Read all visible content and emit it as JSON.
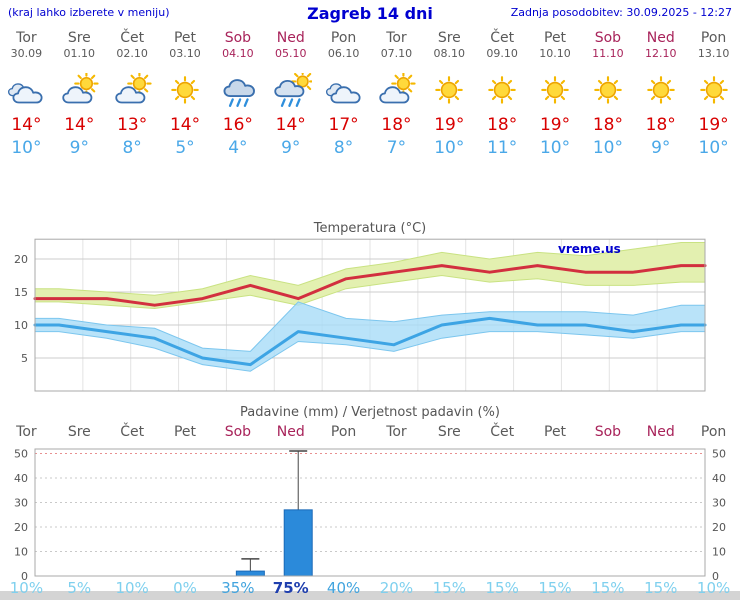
{
  "header": {
    "left_note": "(kraj lahko izberete v meniju)",
    "title": "Zagreb 14 dni",
    "updated": "Zadnja posodobitev: 30.09.2025 - 12:27"
  },
  "colors": {
    "header_text": "#0000d0",
    "weekday_text": "#5a5a5a",
    "weekend_text": "#a8235a",
    "max_temp": "#d80000",
    "min_temp": "#4aa8e8",
    "bar_blue": "#2b8ada",
    "prob_low": "#7fd0ee",
    "prob_mid": "#42a4de",
    "prob_high": "#1f3fae"
  },
  "days": [
    {
      "name": "Tor",
      "date": "30.09",
      "weekend": false,
      "icon": "cloud",
      "tmax": "14°",
      "tmin": "10°",
      "precip_prob": "10%",
      "prob_level": "low"
    },
    {
      "name": "Sre",
      "date": "01.10",
      "weekend": false,
      "icon": "cloud-sun",
      "tmax": "14°",
      "tmin": "9°",
      "precip_prob": "5%",
      "prob_level": "low"
    },
    {
      "name": "Čet",
      "date": "02.10",
      "weekend": false,
      "icon": "cloud-sun",
      "tmax": "13°",
      "tmin": "8°",
      "precip_prob": "10%",
      "prob_level": "low"
    },
    {
      "name": "Pet",
      "date": "03.10",
      "weekend": false,
      "icon": "sun",
      "tmax": "14°",
      "tmin": "5°",
      "precip_prob": "0%",
      "prob_level": "low"
    },
    {
      "name": "Sob",
      "date": "04.10",
      "weekend": true,
      "icon": "rain-cloud",
      "tmax": "16°",
      "tmin": "4°",
      "precip_prob": "35%",
      "prob_level": "mid"
    },
    {
      "name": "Ned",
      "date": "05.10",
      "weekend": true,
      "icon": "rain-sun",
      "tmax": "14°",
      "tmin": "9°",
      "precip_prob": "75%",
      "prob_level": "high"
    },
    {
      "name": "Pon",
      "date": "06.10",
      "weekend": false,
      "icon": "cloud",
      "tmax": "17°",
      "tmin": "8°",
      "precip_prob": "40%",
      "prob_level": "mid"
    },
    {
      "name": "Tor",
      "date": "07.10",
      "weekend": false,
      "icon": "cloud-sun",
      "tmax": "18°",
      "tmin": "7°",
      "precip_prob": "20%",
      "prob_level": "low"
    },
    {
      "name": "Sre",
      "date": "08.10",
      "weekend": false,
      "icon": "sun",
      "tmax": "19°",
      "tmin": "10°",
      "precip_prob": "15%",
      "prob_level": "low"
    },
    {
      "name": "Čet",
      "date": "09.10",
      "weekend": false,
      "icon": "sun",
      "tmax": "18°",
      "tmin": "11°",
      "precip_prob": "15%",
      "prob_level": "low"
    },
    {
      "name": "Pet",
      "date": "10.10",
      "weekend": false,
      "icon": "sun",
      "tmax": "19°",
      "tmin": "10°",
      "precip_prob": "15%",
      "prob_level": "low"
    },
    {
      "name": "Sob",
      "date": "11.10",
      "weekend": true,
      "icon": "sun",
      "tmax": "18°",
      "tmin": "10°",
      "precip_prob": "15%",
      "prob_level": "low"
    },
    {
      "name": "Ned",
      "date": "12.10",
      "weekend": true,
      "icon": "sun",
      "tmax": "18°",
      "tmin": "9°",
      "precip_prob": "15%",
      "prob_level": "low"
    },
    {
      "name": "Pon",
      "date": "13.10",
      "weekend": false,
      "icon": "sun",
      "tmax": "19°",
      "tmin": "10°",
      "precip_prob": "10%",
      "prob_level": "low"
    }
  ],
  "chart_data": [
    {
      "type": "line",
      "title": "Temperatura (°C)",
      "watermark": "vreme.us",
      "categories": [
        "Tor",
        "Sre",
        "Čet",
        "Pet",
        "Sob",
        "Ned",
        "Pon",
        "Tor",
        "Sre",
        "Čet",
        "Pet",
        "Sob",
        "Ned",
        "Pon"
      ],
      "ylim": [
        0,
        23
      ],
      "yticks": [
        5,
        10,
        15,
        20
      ],
      "grid": true,
      "series": [
        {
          "name": "max-temperature",
          "color": "#d22f3f",
          "values": [
            14,
            14,
            13,
            14,
            16,
            14,
            17,
            18,
            19,
            18,
            19,
            18,
            18,
            19
          ]
        },
        {
          "name": "min-temperature",
          "color": "#3da4e4",
          "values": [
            10,
            9,
            8,
            5,
            4,
            9,
            8,
            7,
            10,
            11,
            10,
            10,
            9,
            10
          ]
        }
      ],
      "bands": [
        {
          "name": "max-temperature-range",
          "fill": "#e3f0b0",
          "stroke": "#c9e282",
          "opacity": 1,
          "upper": [
            15.5,
            15,
            14.5,
            15.5,
            17.5,
            16,
            18.5,
            19.5,
            21,
            20,
            21,
            20.5,
            21.5,
            22.5
          ],
          "lower": [
            13.5,
            13,
            12.5,
            13.5,
            14.5,
            13,
            15.5,
            16.5,
            17.5,
            16.5,
            17,
            16,
            16,
            16.5
          ]
        },
        {
          "name": "min-temperature-range",
          "fill": "#a8dcf8",
          "stroke": "#7cc6ee",
          "opacity": 0.8,
          "upper": [
            11,
            10,
            9.5,
            6.5,
            6,
            13.5,
            11,
            10.5,
            11.5,
            12,
            12,
            12,
            11.5,
            13
          ],
          "lower": [
            9,
            8,
            6.5,
            4,
            3,
            7.5,
            7,
            6,
            8,
            9,
            9,
            8.5,
            8,
            9
          ]
        }
      ]
    },
    {
      "type": "bar",
      "title": "Padavine (mm) / Verjetnost padavin (%)",
      "categories": [
        "Tor",
        "Sre",
        "Čet",
        "Pet",
        "Sob",
        "Ned",
        "Pon",
        "Tor",
        "Sre",
        "Čet",
        "Pet",
        "Sob",
        "Ned",
        "Pon"
      ],
      "ylim": [
        0,
        52
      ],
      "yticks": [
        0,
        10,
        20,
        30,
        40,
        50
      ],
      "bar_color": "#2b8ada",
      "values": [
        0,
        0,
        0,
        0,
        2,
        27,
        0,
        0,
        0,
        0,
        0,
        0,
        0,
        0
      ],
      "whisker_max": [
        0,
        0,
        0,
        0,
        7,
        51,
        0,
        0,
        0,
        0,
        0,
        0,
        0,
        0
      ],
      "probabilities": [
        "10%",
        "5%",
        "10%",
        "0%",
        "35%",
        "75%",
        "40%",
        "20%",
        "15%",
        "15%",
        "15%",
        "15%",
        "15%",
        "10%"
      ]
    }
  ]
}
